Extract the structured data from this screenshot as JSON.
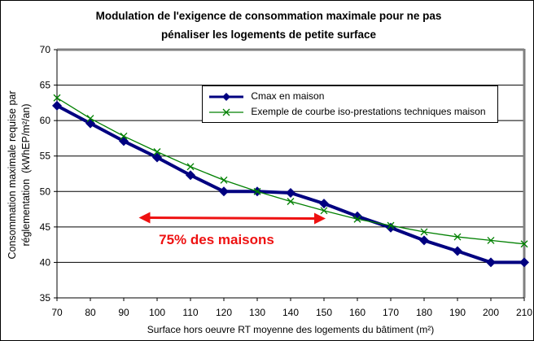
{
  "chart_data": {
    "type": "line",
    "title": "Modulation de l'exigence de consommation maximale pour ne pas pénaliser les logements de petite surface",
    "title_lines": [
      "Modulation de l'exigence de consommation maximale pour ne pas",
      "pénaliser les logements de petite surface"
    ],
    "xlabel": "Surface hors oeuvre RT moyenne des logements du bâtiment (m²)",
    "ylabel": "Consommation maximale requise par réglementation (kWhEP/m²/an)",
    "ylabel_lines": [
      "Consommation maximale requise par",
      "réglementation  (kWhEP/m²/an)"
    ],
    "x": [
      70,
      80,
      90,
      100,
      110,
      120,
      130,
      140,
      150,
      160,
      170,
      180,
      190,
      200,
      210
    ],
    "xlim": [
      70,
      210
    ],
    "ylim": [
      35,
      70
    ],
    "xticks": [
      70,
      80,
      90,
      100,
      110,
      120,
      130,
      140,
      150,
      160,
      170,
      180,
      190,
      200,
      210
    ],
    "yticks": [
      35,
      40,
      45,
      50,
      55,
      60,
      65,
      70
    ],
    "grid": "horizontal",
    "legend_position": "top-right",
    "series": [
      {
        "name": "Cmax en maison",
        "color": "#000080",
        "marker": "diamond",
        "values": [
          62.1,
          59.6,
          57.1,
          54.8,
          52.3,
          50.0,
          50.0,
          49.8,
          48.3,
          46.5,
          44.9,
          43.1,
          41.6,
          40.0,
          40.0
        ]
      },
      {
        "name": "Exemple de courbe iso-prestations techniques maison",
        "color": "#008000",
        "marker": "x",
        "values": [
          63.2,
          60.3,
          57.8,
          55.6,
          53.5,
          51.6,
          50.0,
          48.6,
          47.3,
          46.1,
          45.2,
          44.3,
          43.6,
          43.1,
          42.6
        ]
      }
    ],
    "annotations": [
      {
        "text": "75% des maisons",
        "color": "#ee1111",
        "arrow": {
          "type": "double-headed",
          "x_from": 95,
          "x_to": 150,
          "y": 46.3
        }
      }
    ]
  }
}
